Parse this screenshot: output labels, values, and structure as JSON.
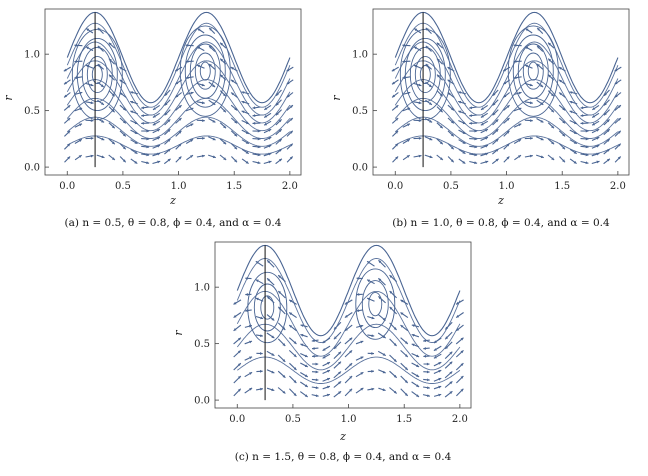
{
  "chart_data": [
    {
      "type": "vector-field",
      "caption": "(a) n = 0.5, θ = 0.8, ϕ = 0.4, and α = 0.4",
      "params": {
        "n": 0.5,
        "theta": 0.8,
        "phi": 0.4,
        "alpha": 0.4
      },
      "xlabel": "z",
      "ylabel": "r",
      "xlim": [
        -0.2,
        2.1
      ],
      "ylim": [
        -0.07,
        1.4
      ],
      "xticks": [
        "0.0",
        "0.5",
        "1.0",
        "1.5",
        "2.0"
      ],
      "yticks": [
        "0.0",
        "0.5",
        "1.0"
      ],
      "boundary_peaks_at_z": [
        0.25,
        1.25
      ],
      "trapped_bolus_centers": [
        {
          "z": 0.27,
          "r": 0.82
        },
        {
          "z": 1.24,
          "r": 0.85
        }
      ],
      "marker_line_z": 0.25,
      "grid": false
    },
    {
      "type": "vector-field",
      "caption": "(b) n = 1.0, θ = 0.8, ϕ = 0.4, and α = 0.4",
      "params": {
        "n": 1.0,
        "theta": 0.8,
        "phi": 0.4,
        "alpha": 0.4
      },
      "xlabel": "z",
      "ylabel": "r",
      "xlim": [
        -0.2,
        2.1
      ],
      "ylim": [
        -0.07,
        1.4
      ],
      "xticks": [
        "0.0",
        "0.5",
        "1.0",
        "1.5",
        "2.0"
      ],
      "yticks": [
        "0.0",
        "0.5",
        "1.0"
      ],
      "boundary_peaks_at_z": [
        0.25,
        1.25
      ],
      "trapped_bolus_centers": [
        {
          "z": 0.27,
          "r": 0.82
        },
        {
          "z": 1.24,
          "r": 0.85
        }
      ],
      "marker_line_z": 0.25,
      "grid": false
    },
    {
      "type": "vector-field",
      "caption": "(c) n = 1.5, θ = 0.8, ϕ = 0.4, and α = 0.4",
      "params": {
        "n": 1.5,
        "theta": 0.8,
        "phi": 0.4,
        "alpha": 0.4
      },
      "xlabel": "z",
      "ylabel": "r",
      "xlim": [
        -0.2,
        2.1
      ],
      "ylim": [
        -0.07,
        1.4
      ],
      "xticks": [
        "0.0",
        "0.5",
        "1.0",
        "1.5",
        "2.0"
      ],
      "yticks": [
        "0.0",
        "0.5",
        "1.0"
      ],
      "boundary_peaks_at_z": [
        0.25,
        1.25
      ],
      "trapped_bolus_centers": [
        {
          "z": 0.27,
          "r": 0.82
        },
        {
          "z": 1.24,
          "r": 0.85
        }
      ],
      "marker_line_z": 0.25,
      "grid": false
    }
  ],
  "style": {
    "stream_color": "#4a6593",
    "frame_color": "#444444",
    "marker_line_color": "#111111"
  }
}
